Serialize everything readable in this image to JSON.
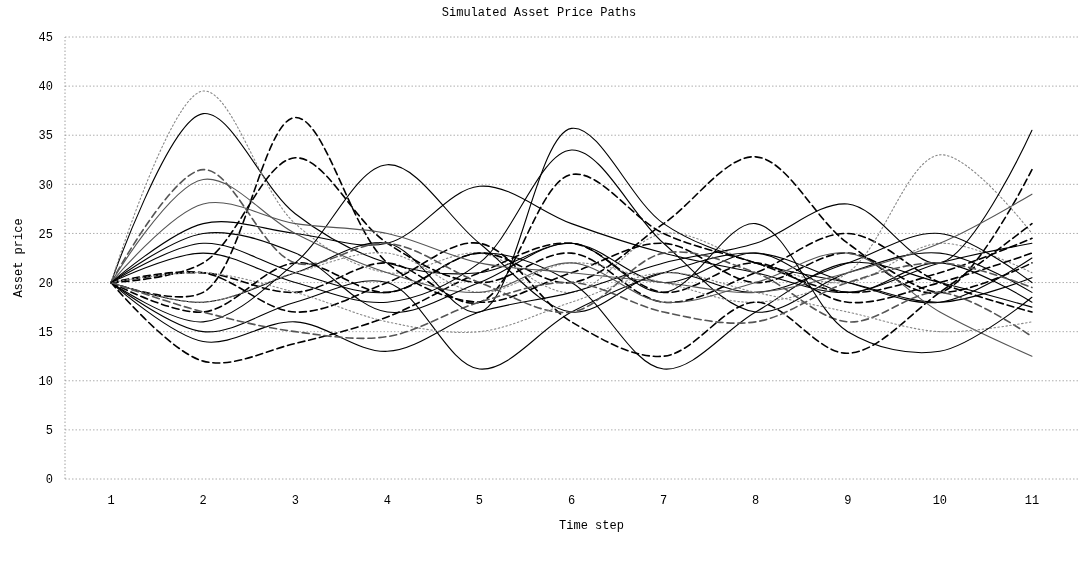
{
  "chart_data": {
    "type": "line",
    "title": "Simulated Asset Price Paths",
    "xlabel": "Time step",
    "ylabel": "Asset price",
    "categories": [
      "1",
      "2",
      "3",
      "4",
      "5",
      "6",
      "7",
      "8",
      "9",
      "10",
      "11"
    ],
    "ylim": [
      0,
      45
    ],
    "yticks": [
      0,
      5,
      10,
      15,
      20,
      25,
      30,
      35,
      40,
      45
    ],
    "grid": "y",
    "marker": "none",
    "series": [
      {
        "color": "#000000",
        "line_style": "solid",
        "values": [
          20,
          37.2,
          27,
          22,
          21,
          24,
          20,
          23,
          19,
          22,
          18
        ]
      },
      {
        "color": "#888888",
        "line_style": "dotted",
        "values": [
          20,
          39.5,
          26,
          21,
          23,
          19,
          25,
          22,
          20,
          24,
          21
        ]
      },
      {
        "color": "#000000",
        "line_style": "dashed",
        "values": [
          20,
          19,
          36.8,
          22,
          18,
          21,
          24,
          20,
          23,
          19,
          22
        ]
      },
      {
        "color": "#000000",
        "line_style": "dashed",
        "values": [
          20,
          22,
          32.7,
          24,
          20,
          23,
          18,
          21,
          25,
          20,
          17
        ]
      },
      {
        "color": "#000000",
        "line_style": "dashed",
        "values": [
          20,
          12,
          13.8,
          16.5,
          21,
          24,
          19,
          22,
          18,
          20,
          23
        ]
      },
      {
        "color": "#000000",
        "line_style": "solid",
        "values": [
          20,
          16,
          22,
          32,
          24,
          17,
          21,
          19,
          22,
          25,
          20
        ]
      },
      {
        "color": "#000000",
        "line_style": "solid",
        "values": [
          20,
          26,
          25,
          24,
          29.8,
          26,
          23,
          21,
          19,
          22,
          24
        ]
      },
      {
        "color": "#000000",
        "line_style": "solid",
        "values": [
          20,
          18,
          21,
          24,
          17,
          35.7,
          26,
          22,
          20,
          18,
          20.5
        ]
      },
      {
        "color": "#000000",
        "line_style": "solid",
        "values": [
          20,
          23,
          20,
          18,
          22,
          33.5,
          24,
          17,
          21,
          23,
          19
        ]
      },
      {
        "color": "#000000",
        "line_style": "dashed",
        "values": [
          20,
          21,
          19,
          22,
          18,
          31,
          25,
          22,
          19,
          21,
          24.5
        ]
      },
      {
        "color": "#000000",
        "line_style": "dashed",
        "values": [
          20,
          17,
          22,
          19,
          23,
          20,
          26,
          32.8,
          24,
          19,
          31.5
        ]
      },
      {
        "color": "#000000",
        "line_style": "solid",
        "values": [
          20,
          15,
          18,
          20,
          11.2,
          17,
          21,
          23,
          20,
          18,
          22.5
        ]
      },
      {
        "color": "#000000",
        "line_style": "solid",
        "values": [
          20,
          24,
          21,
          19,
          23,
          20,
          11.2,
          17,
          22,
          20,
          17.5
        ]
      },
      {
        "color": "#888888",
        "line_style": "dotted",
        "values": [
          20,
          18,
          21,
          23,
          19,
          22,
          20,
          18,
          21,
          33,
          25
        ]
      },
      {
        "color": "#000000",
        "line_style": "solid",
        "values": [
          20,
          14,
          16,
          13,
          17,
          19,
          22,
          24,
          28,
          22,
          35.5
        ]
      },
      {
        "color": "#000000",
        "line_style": "dashed",
        "values": [
          20,
          21,
          17,
          20,
          24,
          16,
          12.5,
          18,
          12.8,
          19,
          26
        ]
      },
      {
        "color": "#555555",
        "line_style": "solid",
        "values": [
          20,
          30.5,
          25,
          21,
          19,
          22,
          18,
          20,
          23,
          17,
          12.5
        ]
      },
      {
        "color": "#555555",
        "line_style": "dashed",
        "values": [
          20,
          31.5,
          22,
          24,
          20,
          17,
          23,
          21,
          16,
          19,
          14.5
        ]
      },
      {
        "color": "#555555",
        "line_style": "solid",
        "values": [
          20,
          28,
          26,
          25,
          22,
          21,
          20,
          19,
          21,
          24,
          29
        ]
      },
      {
        "color": "#888888",
        "line_style": "dotted",
        "values": [
          20,
          21,
          19,
          16,
          15,
          18,
          21,
          19,
          17,
          15,
          16
        ]
      },
      {
        "color": "#555555",
        "line_style": "dashed",
        "values": [
          20,
          17,
          15,
          14.5,
          18,
          20,
          17,
          16,
          20,
          22,
          19.5
        ]
      },
      {
        "color": "#000000",
        "line_style": "solid",
        "values": [
          20,
          25,
          23,
          17,
          20,
          24,
          19,
          26,
          15,
          13,
          18.5
        ]
      }
    ]
  }
}
